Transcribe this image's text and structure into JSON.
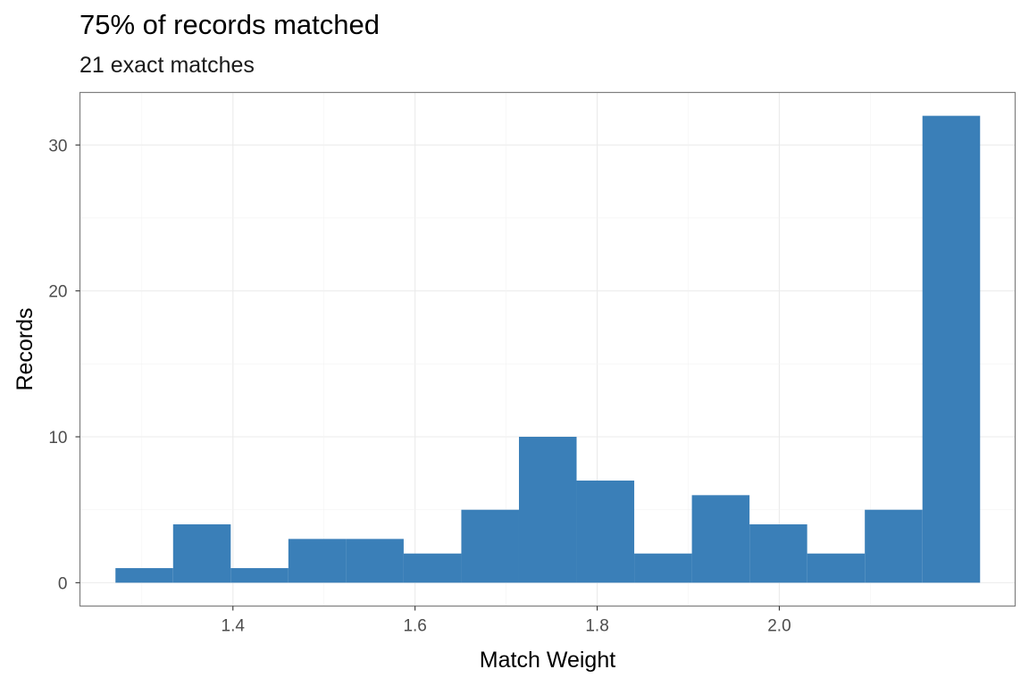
{
  "chart_data": {
    "type": "bar",
    "title": "75% of records matched",
    "subtitle": "21 exact matches",
    "xlabel": "Match Weight",
    "ylabel": "Records",
    "bin_width": 0.0633,
    "bins": [
      {
        "x0": 1.271,
        "x1": 1.3343,
        "count": 1
      },
      {
        "x0": 1.3343,
        "x1": 1.3976,
        "count": 4
      },
      {
        "x0": 1.3976,
        "x1": 1.4609,
        "count": 1
      },
      {
        "x0": 1.4609,
        "x1": 1.5242,
        "count": 3
      },
      {
        "x0": 1.5242,
        "x1": 1.5875,
        "count": 3
      },
      {
        "x0": 1.5875,
        "x1": 1.6508,
        "count": 2
      },
      {
        "x0": 1.6508,
        "x1": 1.7141,
        "count": 5
      },
      {
        "x0": 1.7141,
        "x1": 1.7774,
        "count": 10
      },
      {
        "x0": 1.7774,
        "x1": 1.8407,
        "count": 7
      },
      {
        "x0": 1.8407,
        "x1": 1.904,
        "count": 2
      },
      {
        "x0": 1.904,
        "x1": 1.9673,
        "count": 6
      },
      {
        "x0": 1.9673,
        "x1": 2.0306,
        "count": 4
      },
      {
        "x0": 2.0306,
        "x1": 2.0939,
        "count": 2
      },
      {
        "x0": 2.0939,
        "x1": 2.1572,
        "count": 5
      },
      {
        "x0": 2.1572,
        "x1": 2.2205,
        "count": 32
      }
    ],
    "xlim": [
      1.232,
      2.259
    ],
    "ylim": [
      -1.6,
      33.6
    ],
    "x_ticks": [
      1.4,
      1.6,
      1.8,
      2.0
    ],
    "x_tick_labels": [
      "1.4",
      "1.6",
      "1.8",
      "2.0"
    ],
    "y_ticks": [
      0,
      10,
      20,
      30
    ],
    "y_tick_labels": [
      "0",
      "10",
      "20",
      "30"
    ],
    "bar_color": "#3A7FB8",
    "grid": true,
    "panel_border_color": "#7f7f7f",
    "grid_color": "#ebebeb"
  }
}
